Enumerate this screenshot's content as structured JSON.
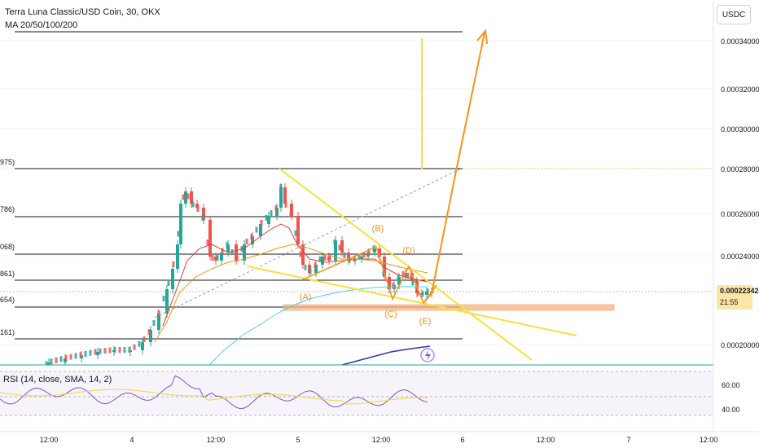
{
  "header": {
    "title": "Terra Luna Classic/USD Coin, 30, OKX",
    "indicator": "MA 20/50/100/200",
    "scale_button": "USDC"
  },
  "price_tag": {
    "price": "0.00022342",
    "countdown": "21:55"
  },
  "rsi": {
    "label": "RSI (14, close, SMA, 14, 2)"
  },
  "fib_level_labels": [
    "975)",
    "786)",
    "068)",
    "861)",
    "654)",
    "161)"
  ],
  "wave_labels": [
    "(A)",
    "(B)",
    "(C)",
    "(D)",
    "(E)"
  ],
  "colors": {
    "up": "#26a69a",
    "down": "#ef5350",
    "pattern": "#f5e23a",
    "projection": "#f7931a",
    "ma20": "#e53935",
    "ma50": "#f7931a",
    "ma100": "#4dd0e1",
    "ma200": "#3f2fa7",
    "rsi": "#7e57c2",
    "rsi_ma": "#f5d63a"
  },
  "chart_data": {
    "type": "candlestick",
    "y_ticks": [
      "0.00034000",
      "0.00032000",
      "0.00030000",
      "0.00028000",
      "0.00026000",
      "0.00024000",
      "0.00020000"
    ],
    "rsi_ticks": [
      "60.00",
      "40.00"
    ],
    "x_ticks": [
      "12:00",
      "4",
      "12:00",
      "5",
      "12:00",
      "6",
      "12:00",
      "7",
      "12:00"
    ],
    "ylim": [
      0.000188,
      0.000352
    ],
    "fib_levels": [
      0.000343,
      0.00028,
      0.000259,
      0.000244,
      0.000236,
      0.000217,
      0.000204
    ],
    "pattern_points": {
      "A": 0.000227,
      "B": 0.000246,
      "C": 0.00022,
      "D": 0.00024,
      "E": 0.000215
    },
    "last_price": 0.00022342,
    "target_price": 0.000343
  }
}
